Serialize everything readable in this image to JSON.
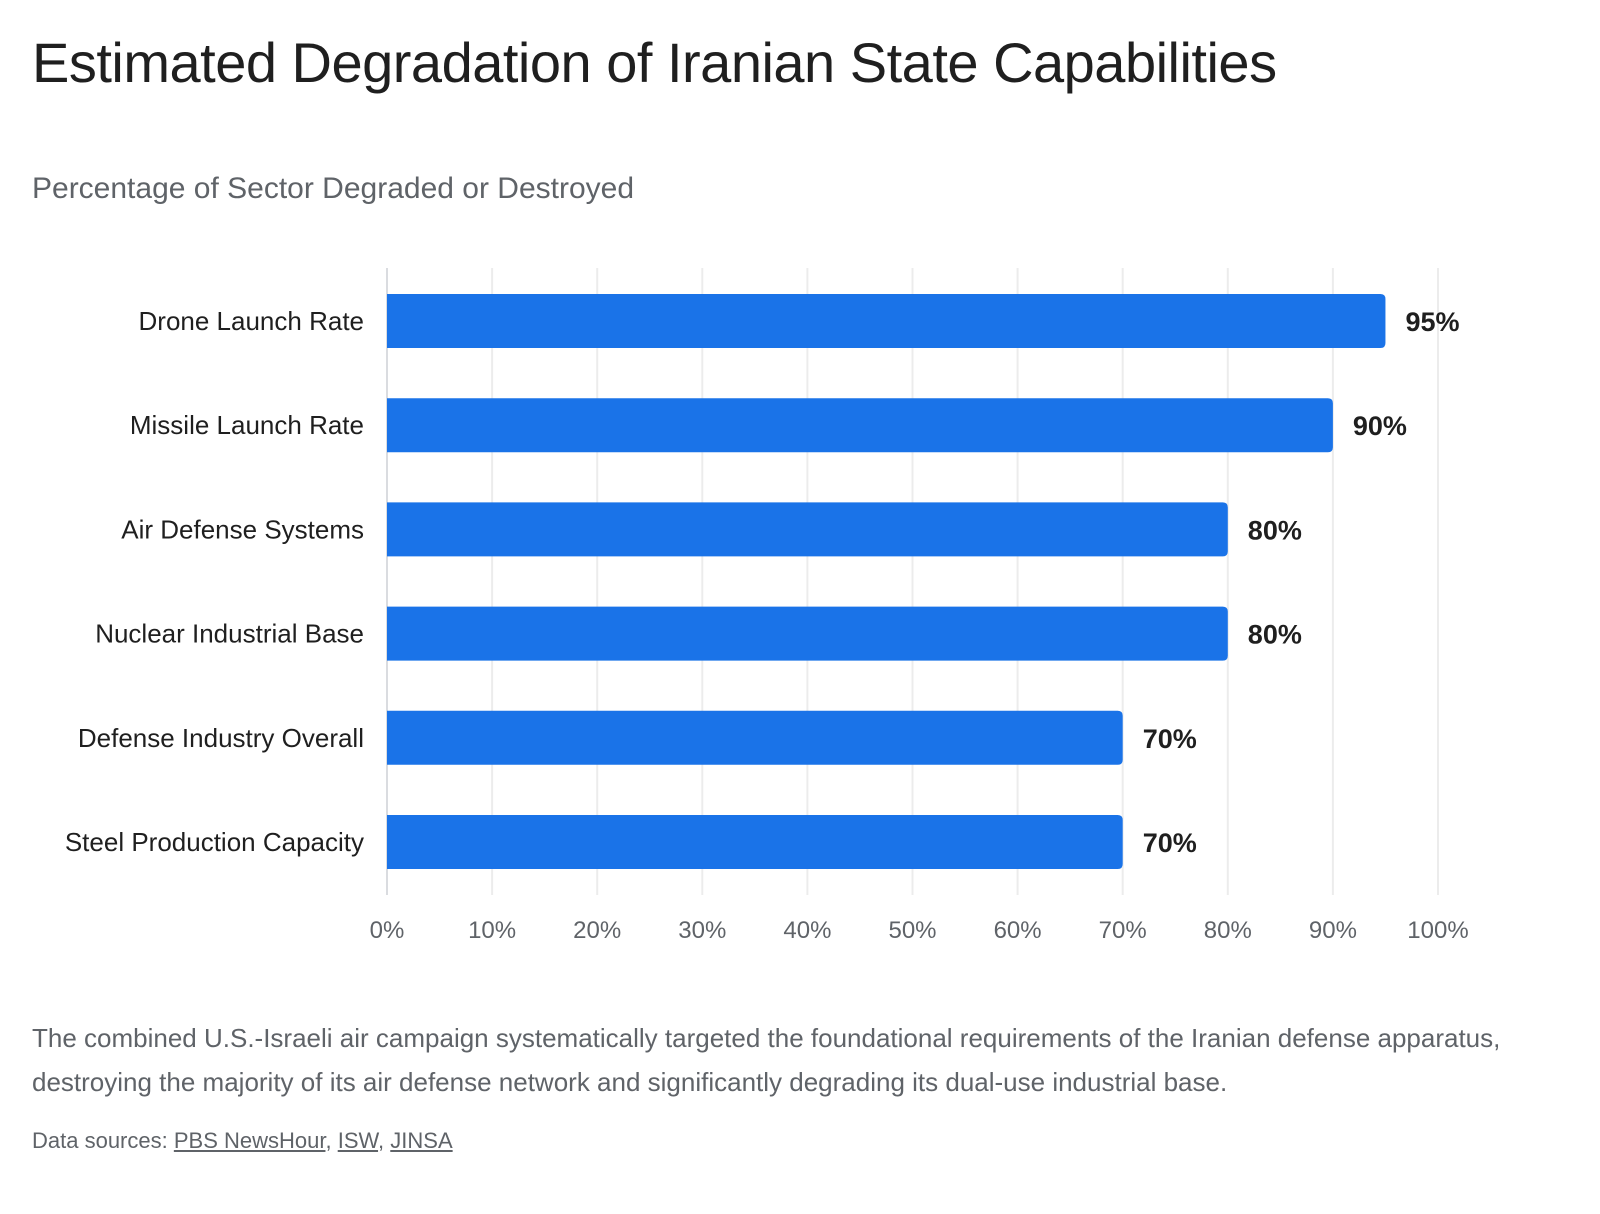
{
  "chart_data": {
    "type": "bar",
    "orientation": "horizontal",
    "title": "Estimated Degradation of Iranian State Capabilities",
    "subtitle": "Percentage of Sector Degraded or Destroyed",
    "categories": [
      "Drone Launch Rate",
      "Missile Launch Rate",
      "Air Defense Systems",
      "Nuclear Industrial Base",
      "Defense Industry Overall",
      "Steel Production Capacity"
    ],
    "values": [
      95,
      90,
      80,
      80,
      70,
      70
    ],
    "data_labels": [
      "95%",
      "90%",
      "80%",
      "80%",
      "70%",
      "70%"
    ],
    "xlim": [
      0,
      100
    ],
    "x_ticks": [
      0,
      10,
      20,
      30,
      40,
      50,
      60,
      70,
      80,
      90,
      100
    ],
    "x_tick_labels": [
      "0%",
      "10%",
      "20%",
      "30%",
      "40%",
      "50%",
      "60%",
      "70%",
      "80%",
      "90%",
      "100%"
    ],
    "xlabel": "",
    "ylabel": "",
    "grid": "vertical",
    "bar_color": "#1a73e8"
  },
  "description": "The combined U.S.-Israeli air campaign systematically targeted the foundational requirements of the Iranian defense apparatus, destroying the majority of its air defense network and significantly degrading its dual-use industrial base.",
  "sources": {
    "prefix": "Data sources: ",
    "links": [
      "PBS NewsHour",
      "ISW",
      "JINSA"
    ]
  }
}
